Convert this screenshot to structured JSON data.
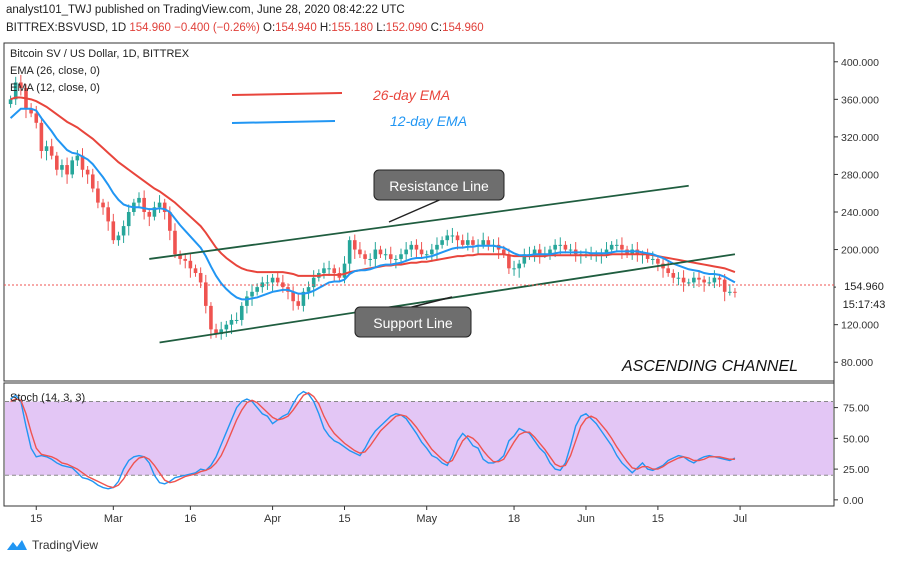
{
  "header": {
    "publisher_line": "analyst101_TWJ published on TradingView.com, June 28, 2020 08:42:22 UTC",
    "symbol": "BITTREX:BSVUSD, 1D",
    "last": "154.960",
    "change": "−0.400 (−0.26%)",
    "o_label": "O:",
    "o": "154.940",
    "h_label": "H:",
    "h": "155.180",
    "l_label": "L:",
    "l": "152.090",
    "c_label": "C:",
    "c": "154.960"
  },
  "legend": {
    "title": "Bitcoin SV / US Dollar, 1D, BITTREX",
    "ema26": "EMA (26, close, 0)",
    "ema12": "EMA (12, close, 0)",
    "stoch": "Stoch (14, 3, 3)"
  },
  "annotations": {
    "ema26_label": "26-day EMA",
    "ema12_label": "12-day EMA",
    "resistance": "Resistance Line",
    "support": "Support Line",
    "pattern": "ASCENDING CHANNEL"
  },
  "price_badge": "154.960",
  "time_badge": "15:17:43",
  "footer_brand": "TradingView",
  "colors": {
    "up": "#26a69a",
    "down": "#ef5350",
    "ema26": "#e8453c",
    "ema12": "#2196f3",
    "stoch_fill": "#e3c6f5",
    "stoch_k": "#2196f3",
    "stoch_d": "#ef5350",
    "channel": "#1f5d3f"
  },
  "chart_data": [
    {
      "type": "candlestick",
      "title": "Bitcoin SV / US Dollar, 1D, BITTREX",
      "ylim": [
        60,
        420
      ],
      "y_ticks": [
        80,
        120,
        160,
        200,
        240,
        280,
        320,
        360,
        400
      ],
      "y_tick_labels": [
        "80.000",
        "120.000",
        "160.000",
        "200.000",
        "240.000",
        "280.000",
        "320.000",
        "360.000",
        "400.000"
      ],
      "x_tick_labels": [
        "15",
        "Mar",
        "16",
        "Apr",
        "15",
        "May",
        "18",
        "Jun",
        "15",
        "Jul"
      ],
      "x_tick_days": [
        5,
        20,
        35,
        51,
        65,
        81,
        98,
        112,
        126,
        142
      ],
      "days": 160,
      "closes": [
        360,
        378,
        372,
        350,
        345,
        335,
        305,
        310,
        300,
        285,
        290,
        280,
        295,
        300,
        285,
        280,
        265,
        250,
        245,
        230,
        210,
        215,
        225,
        240,
        250,
        255,
        240,
        235,
        245,
        250,
        240,
        220,
        195,
        190,
        188,
        180,
        175,
        165,
        140,
        115,
        110,
        115,
        120,
        125,
        125,
        140,
        150,
        155,
        160,
        165,
        165,
        170,
        165,
        160,
        155,
        145,
        140,
        155,
        160,
        170,
        175,
        180,
        180,
        175,
        170,
        185,
        210,
        200,
        195,
        190,
        190,
        200,
        195,
        195,
        190,
        190,
        195,
        200,
        205,
        200,
        195,
        195,
        200,
        205,
        210,
        215,
        215,
        210,
        205,
        210,
        205,
        205,
        210,
        205,
        205,
        200,
        195,
        180,
        180,
        185,
        195,
        195,
        200,
        195,
        195,
        200,
        205,
        205,
        200,
        200,
        195,
        195,
        195,
        195,
        195,
        195,
        200,
        205,
        205,
        200,
        195,
        200,
        195,
        195,
        190,
        190,
        185,
        180,
        175,
        170,
        170,
        165,
        165,
        170,
        168,
        165,
        165,
        170,
        168,
        155,
        155,
        154.96
      ],
      "series": [
        {
          "name": "EMA (26, close, 0)",
          "label": "26-day EMA",
          "values": [
            360,
            362,
            362,
            361,
            360,
            358,
            355,
            352,
            348,
            344,
            340,
            336,
            333,
            330,
            326,
            322,
            318,
            313,
            308,
            303,
            298,
            293,
            289,
            285,
            281,
            277,
            273,
            269,
            265,
            262,
            258,
            254,
            250,
            245,
            240,
            235,
            230,
            225,
            218,
            210,
            202,
            196,
            191,
            187,
            183,
            180,
            178,
            177,
            176,
            176,
            176,
            176,
            176,
            176,
            175,
            174,
            172,
            172,
            172,
            172,
            172,
            173,
            173,
            173,
            173,
            174,
            176,
            177,
            178,
            179,
            180,
            181,
            182,
            183,
            183,
            184,
            184,
            185,
            186,
            186,
            187,
            187,
            188,
            189,
            190,
            191,
            192,
            193,
            193,
            194,
            194,
            195,
            195,
            195,
            195,
            195,
            195,
            194,
            193,
            193,
            193,
            193,
            193,
            193,
            193,
            194,
            194,
            194,
            194,
            194,
            194,
            194,
            194,
            194,
            194,
            194,
            194,
            195,
            195,
            195,
            195,
            195,
            195,
            195,
            195,
            194,
            193,
            192,
            191,
            190,
            189,
            188,
            187,
            186,
            185,
            184,
            183,
            182,
            181,
            180,
            178,
            176
          ]
        },
        {
          "name": "EMA (12, close, 0)",
          "label": "12-day EMA",
          "values": [
            340,
            345,
            350,
            350,
            350,
            348,
            340,
            333,
            326,
            318,
            312,
            306,
            303,
            302,
            299,
            296,
            291,
            284,
            277,
            269,
            260,
            253,
            248,
            246,
            245,
            245,
            244,
            243,
            243,
            244,
            243,
            240,
            233,
            226,
            220,
            214,
            208,
            202,
            193,
            182,
            172,
            164,
            158,
            153,
            149,
            147,
            147,
            148,
            149,
            151,
            153,
            155,
            156,
            157,
            157,
            155,
            153,
            153,
            154,
            156,
            159,
            162,
            165,
            166,
            166,
            168,
            174,
            177,
            178,
            178,
            179,
            181,
            183,
            184,
            184,
            185,
            186,
            188,
            190,
            191,
            191,
            192,
            193,
            195,
            197,
            199,
            201,
            202,
            202,
            203,
            203,
            204,
            204,
            204,
            204,
            203,
            202,
            199,
            196,
            194,
            194,
            194,
            195,
            195,
            195,
            195,
            196,
            197,
            197,
            197,
            197,
            197,
            197,
            196,
            196,
            196,
            196,
            197,
            198,
            198,
            198,
            198,
            198,
            197,
            196,
            195,
            193,
            191,
            188,
            185,
            183,
            181,
            179,
            178,
            177,
            175,
            174,
            174,
            173,
            171,
            168,
            165
          ]
        }
      ],
      "trendlines": [
        {
          "name": "Resistance Line",
          "from": [
            27,
            190
          ],
          "to": [
            132,
            268
          ]
        },
        {
          "name": "Support Line",
          "from": [
            29,
            101
          ],
          "to": [
            141,
            195
          ]
        }
      ]
    },
    {
      "type": "line",
      "title": "Stoch (14, 3, 3)",
      "ylim": [
        -5,
        95
      ],
      "y_ticks": [
        0,
        25,
        50,
        75
      ],
      "y_tick_labels": [
        "0.00",
        "25.00",
        "50.00",
        "75.00"
      ],
      "bands": [
        20,
        80
      ],
      "series": [
        {
          "name": "%K",
          "values": [
            82,
            85,
            80,
            60,
            42,
            35,
            36,
            35,
            33,
            30,
            28,
            27,
            26,
            22,
            18,
            17,
            15,
            12,
            10,
            9,
            10,
            15,
            25,
            32,
            35,
            36,
            35,
            30,
            20,
            14,
            13,
            15,
            18,
            19,
            20,
            21,
            22,
            25,
            24,
            28,
            35,
            45,
            55,
            65,
            75,
            80,
            82,
            80,
            75,
            70,
            68,
            62,
            65,
            68,
            70,
            78,
            85,
            88,
            86,
            80,
            70,
            58,
            52,
            48,
            46,
            43,
            40,
            38,
            36,
            42,
            50,
            56,
            60,
            64,
            68,
            70,
            69,
            66,
            60,
            54,
            47,
            42,
            36,
            34,
            30,
            28,
            36,
            48,
            54,
            50,
            44,
            42,
            33,
            30,
            30,
            32,
            36,
            48,
            52,
            58,
            56,
            54,
            48,
            42,
            38,
            30,
            25,
            24,
            30,
            44,
            60,
            68,
            70,
            66,
            62,
            56,
            50,
            44,
            36,
            30,
            26,
            22,
            26,
            30,
            25,
            24,
            26,
            28,
            32,
            34,
            36,
            35,
            32,
            30,
            33,
            35,
            36,
            35,
            34,
            33,
            32,
            34
          ]
        },
        {
          "name": "%D",
          "values": [
            80,
            82,
            81,
            70,
            55,
            42,
            37,
            36,
            35,
            33,
            30,
            29,
            27,
            25,
            22,
            19,
            17,
            15,
            13,
            11,
            10,
            12,
            17,
            24,
            30,
            34,
            35,
            33,
            28,
            22,
            16,
            14,
            15,
            17,
            19,
            20,
            21,
            23,
            24,
            26,
            30,
            36,
            45,
            55,
            65,
            73,
            79,
            81,
            79,
            75,
            71,
            67,
            65,
            66,
            68,
            73,
            79,
            85,
            87,
            84,
            78,
            68,
            60,
            54,
            50,
            46,
            43,
            40,
            38,
            39,
            44,
            50,
            56,
            60,
            64,
            68,
            69,
            68,
            64,
            59,
            53,
            47,
            41,
            37,
            33,
            30,
            32,
            40,
            48,
            52,
            50,
            46,
            40,
            35,
            31,
            31,
            33,
            40,
            47,
            53,
            55,
            55,
            51,
            46,
            41,
            35,
            29,
            27,
            28,
            36,
            48,
            60,
            66,
            68,
            66,
            61,
            56,
            50,
            43,
            37,
            31,
            26,
            25,
            27,
            27,
            25,
            25,
            27,
            30,
            32,
            34,
            35,
            34,
            32,
            32,
            33,
            35,
            35,
            35,
            34,
            33,
            33
          ]
        }
      ]
    }
  ]
}
